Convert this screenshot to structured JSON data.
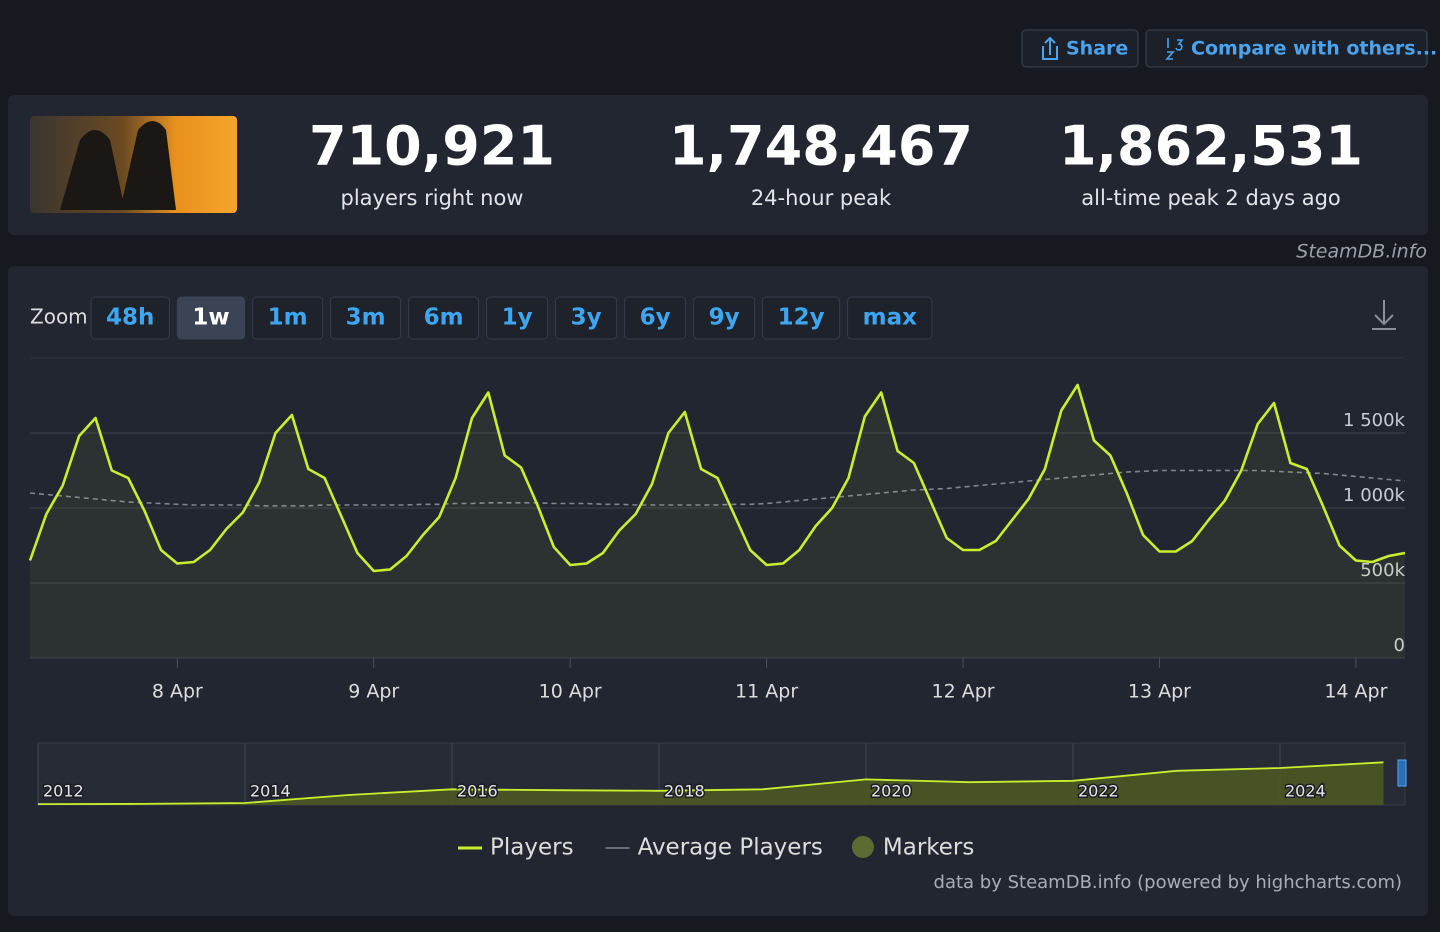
{
  "header": {
    "buttons": [
      "Share",
      "Compare with others..."
    ]
  },
  "stats": [
    {
      "value": "710,921",
      "label": "players right now"
    },
    {
      "value": "1,748,467",
      "label": "24-hour peak"
    },
    {
      "value": "1,862,531",
      "label": "all-time peak 2 days ago"
    }
  ],
  "watermark": "SteamDB.info",
  "zoom": {
    "label": "Zoom",
    "options": [
      "48h",
      "1w",
      "1m",
      "3m",
      "6m",
      "1y",
      "3y",
      "6y",
      "9y",
      "12y",
      "max"
    ],
    "active": 1
  },
  "credit": "data by SteamDB.info (powered by highcharts.com)",
  "chart_data": [
    {
      "type": "line",
      "categories": [
        null,
        null,
        null,
        null,
        null,
        null,
        null,
        null,
        null,
        "8 Apr",
        null,
        null,
        null,
        null,
        null,
        null,
        null,
        null,
        null,
        null,
        null,
        "9 Apr",
        null,
        null,
        null,
        null,
        null,
        null,
        null,
        null,
        null,
        null,
        null,
        "10 Apr",
        null,
        null,
        null,
        null,
        null,
        null,
        null,
        null,
        null,
        null,
        null,
        "11 Apr",
        null,
        null,
        null,
        null,
        null,
        null,
        null,
        null,
        null,
        null,
        null,
        "12 Apr",
        null,
        null,
        null,
        null,
        null,
        null,
        null,
        null,
        null,
        null,
        null,
        "13 Apr",
        null,
        null,
        null,
        null,
        null,
        null,
        null,
        null,
        null,
        null,
        null,
        "14 Apr",
        null,
        null,
        null
      ],
      "series": [
        {
          "name": "Players",
          "color": "#c8ef2e",
          "dashed": false,
          "values": [
            650000,
            960000,
            1150000,
            1480000,
            1600000,
            1250000,
            1200000,
            980000,
            720000,
            630000,
            640000,
            720000,
            860000,
            970000,
            1170000,
            1500000,
            1620000,
            1260000,
            1200000,
            950000,
            700000,
            580000,
            590000,
            680000,
            820000,
            940000,
            1200000,
            1600000,
            1770000,
            1350000,
            1270000,
            1020000,
            740000,
            620000,
            630000,
            700000,
            850000,
            960000,
            1160000,
            1500000,
            1640000,
            1260000,
            1200000,
            960000,
            720000,
            620000,
            630000,
            720000,
            880000,
            1000000,
            1200000,
            1610000,
            1770000,
            1380000,
            1300000,
            1050000,
            800000,
            720000,
            720000,
            780000,
            920000,
            1060000,
            1260000,
            1650000,
            1820000,
            1450000,
            1350000,
            1100000,
            820000,
            710000,
            710000,
            780000,
            920000,
            1050000,
            1250000,
            1560000,
            1700000,
            1300000,
            1260000,
            1010000,
            750000,
            650000,
            640000,
            680000,
            700000
          ]
        },
        {
          "name": "Average Players",
          "color": "#80858e",
          "dashed": true,
          "values": [
            1100000,
            1090000,
            1080000,
            1070000,
            1060000,
            1050000,
            1040000,
            1035000,
            1030000,
            1025000,
            1020000,
            1020000,
            1020000,
            1020000,
            1015000,
            1015000,
            1015000,
            1015000,
            1020000,
            1020000,
            1020000,
            1020000,
            1020000,
            1020000,
            1025000,
            1025000,
            1030000,
            1030000,
            1035000,
            1035000,
            1035000,
            1035000,
            1030000,
            1030000,
            1030000,
            1025000,
            1025000,
            1020000,
            1020000,
            1020000,
            1020000,
            1020000,
            1020000,
            1025000,
            1025000,
            1030000,
            1040000,
            1050000,
            1060000,
            1070000,
            1080000,
            1090000,
            1100000,
            1110000,
            1120000,
            1125000,
            1130000,
            1140000,
            1150000,
            1160000,
            1170000,
            1180000,
            1190000,
            1200000,
            1210000,
            1220000,
            1230000,
            1240000,
            1245000,
            1250000,
            1250000,
            1250000,
            1250000,
            1250000,
            1250000,
            1250000,
            1245000,
            1240000,
            1235000,
            1230000,
            1220000,
            1210000,
            1200000,
            1190000,
            1180000
          ]
        }
      ],
      "ylim": [
        0,
        2000000
      ],
      "yticks": [
        0,
        {
          "value": 500000,
          "label": "500k"
        },
        {
          "value": 1000000,
          "label": "1 000k"
        },
        {
          "value": 1500000,
          "label": "1 500k"
        }
      ],
      "grid": true,
      "legend": "bottom",
      "markers_label": "Markers",
      "markers_color": "#5d6b33"
    },
    {
      "type": "area",
      "categories": [
        "2012",
        null,
        "2014",
        null,
        "2016",
        null,
        "2018",
        null,
        "2020",
        null,
        "2022",
        null,
        "2024",
        null
      ],
      "values": [
        30000,
        40000,
        70000,
        350000,
        550000,
        520000,
        500000,
        550000,
        900000,
        800000,
        850000,
        1200000,
        1300000,
        1500000
      ],
      "color": "#c8ef2e",
      "ylim": [
        0,
        2000000
      ]
    }
  ]
}
